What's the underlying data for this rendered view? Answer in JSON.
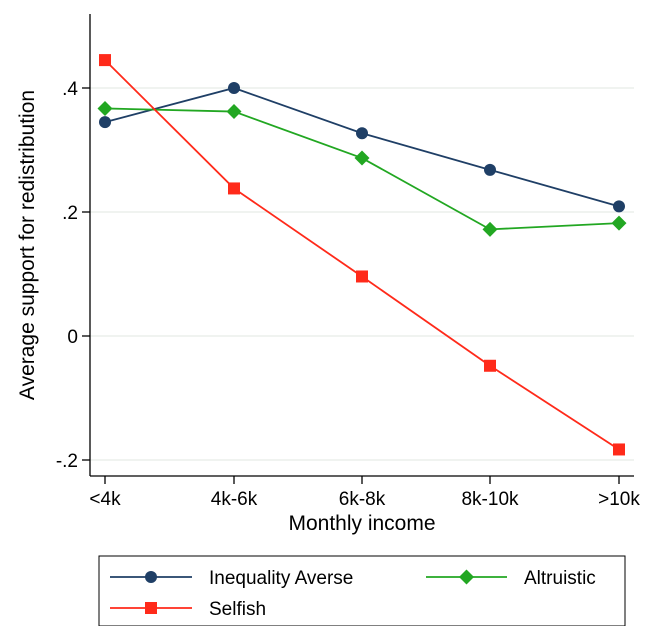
{
  "chart_data": {
    "type": "line",
    "title": "",
    "xlabel": "Monthly income",
    "ylabel": "Average support for redistribution",
    "categories": [
      "<4k",
      "4k-6k",
      "6k-8k",
      "8k-10k",
      ">10k"
    ],
    "yticks": [
      -0.2,
      0,
      0.2,
      0.4
    ],
    "ytick_labels": [
      "-.2",
      "0",
      ".2",
      ".4"
    ],
    "ylim": [
      -0.22,
      0.53
    ],
    "grid": true,
    "legend_position": "bottom",
    "series": [
      {
        "name": "Inequality Averse",
        "color": "#1f3f66",
        "marker": "circle",
        "values": [
          0.345,
          0.4,
          0.327,
          0.268,
          0.209
        ]
      },
      {
        "name": "Altruistic",
        "color": "#22a722",
        "marker": "diamond",
        "values": [
          0.367,
          0.362,
          0.287,
          0.172,
          0.182
        ]
      },
      {
        "name": "Selfish",
        "color": "#ff2a1a",
        "marker": "square",
        "values": [
          0.445,
          0.238,
          0.096,
          -0.048,
          -0.183
        ]
      }
    ]
  }
}
